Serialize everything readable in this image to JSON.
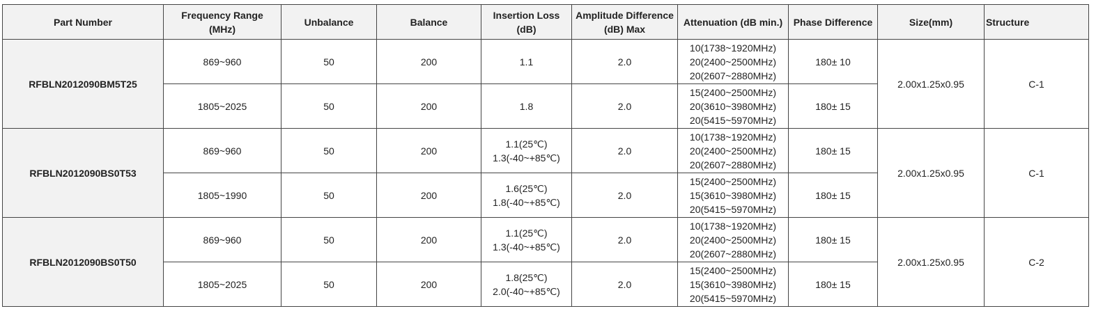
{
  "headers": {
    "part_number": "Part Number",
    "freq_range": [
      "Frequency Range",
      "(MHz)"
    ],
    "unbalance": "Unbalance",
    "balance": "Balance",
    "insertion_loss": [
      "Insertion Loss",
      "(dB)"
    ],
    "amplitude_diff": [
      "Amplitude Difference",
      "(dB) Max"
    ],
    "attenuation": "Attenuation (dB min.)",
    "phase_diff": "Phase Difference",
    "size": "Size(mm)",
    "structure": "Structure"
  },
  "groups": [
    {
      "part_number": "RFBLN2012090BM5T25",
      "size": "2.00x1.25x0.95",
      "structure": "C-1",
      "rows": [
        {
          "freq": "869~960",
          "unbalance": "50",
          "balance": "200",
          "insertion_loss": [
            "1.1"
          ],
          "amplitude": "2.0",
          "attenuation": [
            "10(1738~1920MHz)",
            "20(2400~2500MHz)",
            "20(2607~2880MHz)"
          ],
          "phase": "180± 10"
        },
        {
          "freq": "1805~2025",
          "unbalance": "50",
          "balance": "200",
          "insertion_loss": [
            "1.8"
          ],
          "amplitude": "2.0",
          "attenuation": [
            "15(2400~2500MHz)",
            "20(3610~3980MHz)",
            "20(5415~5970MHz)"
          ],
          "phase": "180± 15"
        }
      ]
    },
    {
      "part_number": "RFBLN2012090BS0T53",
      "size": "2.00x1.25x0.95",
      "structure": "C-1",
      "rows": [
        {
          "freq": "869~960",
          "unbalance": "50",
          "balance": "200",
          "insertion_loss": [
            "1.1(25℃)",
            "1.3(-40~+85℃)"
          ],
          "amplitude": "2.0",
          "attenuation": [
            "10(1738~1920MHz)",
            "20(2400~2500MHz)",
            "20(2607~2880MHz)"
          ],
          "phase": "180± 15"
        },
        {
          "freq": "1805~1990",
          "unbalance": "50",
          "balance": "200",
          "insertion_loss": [
            "1.6(25℃)",
            "1.8(-40~+85℃)"
          ],
          "amplitude": "2.0",
          "attenuation": [
            "15(2400~2500MHz)",
            "15(3610~3980MHz)",
            "20(5415~5970MHz)"
          ],
          "phase": "180± 15"
        }
      ]
    },
    {
      "part_number": "RFBLN2012090BS0T50",
      "size": "2.00x1.25x0.95",
      "structure": "C-2",
      "rows": [
        {
          "freq": "869~960",
          "unbalance": "50",
          "balance": "200",
          "insertion_loss": [
            "1.1(25℃)",
            "1.3(-40~+85℃)"
          ],
          "amplitude": "2.0",
          "attenuation": [
            "10(1738~1920MHz)",
            "20(2400~2500MHz)",
            "20(2607~2880MHz)"
          ],
          "phase": "180± 15"
        },
        {
          "freq": "1805~2025",
          "unbalance": "50",
          "balance": "200",
          "insertion_loss": [
            "1.8(25℃)",
            "2.0(-40~+85℃)"
          ],
          "amplitude": "2.0",
          "attenuation": [
            "15(2400~2500MHz)",
            "15(3610~3980MHz)",
            "20(5415~5970MHz)"
          ],
          "phase": "180± 15"
        }
      ]
    }
  ]
}
